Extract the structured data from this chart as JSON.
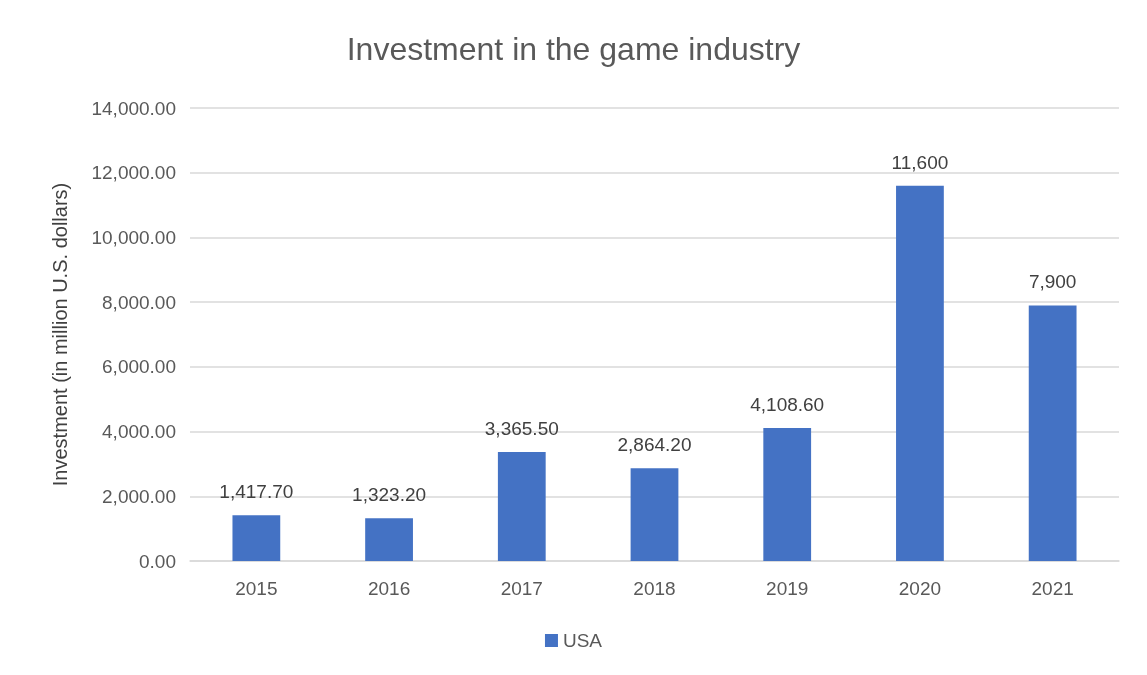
{
  "chart_data": {
    "type": "bar",
    "title": "Investment in the game industry",
    "ylabel": "Investment (in million U.S. dollars)",
    "categories": [
      "2015",
      "2016",
      "2017",
      "2018",
      "2019",
      "2020",
      "2021"
    ],
    "series": [
      {
        "name": "USA",
        "color": "#4472c4",
        "values": [
          1417.7,
          1323.2,
          3365.5,
          2864.2,
          4108.6,
          11600,
          7900
        ],
        "value_labels": [
          "1,417.70",
          "1,323.20",
          "3,365.50",
          "2,864.20",
          "4,108.60",
          "11,600",
          "7,900"
        ]
      }
    ],
    "ylim": [
      0,
      14000
    ],
    "yticks": [
      {
        "value": 0,
        "label": "0.00"
      },
      {
        "value": 2000,
        "label": "2,000.00"
      },
      {
        "value": 4000,
        "label": "4,000.00"
      },
      {
        "value": 6000,
        "label": "6,000.00"
      },
      {
        "value": 8000,
        "label": "8,000.00"
      },
      {
        "value": 10000,
        "label": "10,000.00"
      },
      {
        "value": 12000,
        "label": "12,000.00"
      },
      {
        "value": 14000,
        "label": "14,000.00"
      }
    ],
    "grid": "y",
    "legend": "bottom"
  }
}
